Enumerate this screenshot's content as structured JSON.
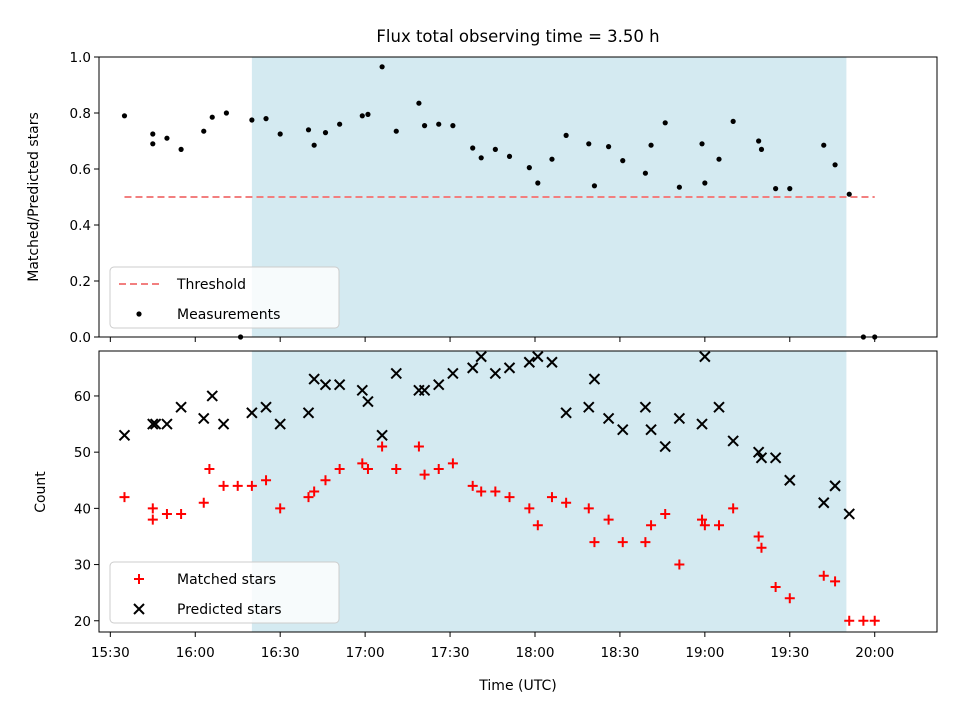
{
  "chart_data": [
    {
      "type": "scatter",
      "title": "Flux total observing time = 3.50 h",
      "xlabel": "",
      "ylabel": "Matched/Predicted stars",
      "xlim_minutes": [
        926,
        1222
      ],
      "ylim": [
        0,
        1.0
      ],
      "yticks": [
        "0.0",
        "0.2",
        "0.4",
        "0.6",
        "0.8",
        "1.0"
      ],
      "shaded_region_x": [
        "16:20",
        "19:50"
      ],
      "shaded_color": "#d4eaf1",
      "threshold": {
        "name": "Threshold",
        "y": 0.5,
        "x_start": "15:35",
        "x_end": "20:00",
        "color": "#f27f7f"
      },
      "legend": {
        "placement": "lower-left",
        "entries": [
          "Threshold",
          "Measurements"
        ]
      },
      "series": [
        {
          "name": "Measurements",
          "color": "#000000",
          "points": [
            [
              "15:35",
              0.79
            ],
            [
              "15:45",
              0.69
            ],
            [
              "15:45",
              0.725
            ],
            [
              "15:50",
              0.71
            ],
            [
              "15:55",
              0.67
            ],
            [
              "16:03",
              0.735
            ],
            [
              "16:06",
              0.785
            ],
            [
              "16:11",
              0.8
            ],
            [
              "16:16",
              0.0
            ],
            [
              "16:20",
              0.775
            ],
            [
              "16:25",
              0.78
            ],
            [
              "16:30",
              0.725
            ],
            [
              "16:40",
              0.74
            ],
            [
              "16:42",
              0.685
            ],
            [
              "16:46",
              0.73
            ],
            [
              "16:51",
              0.76
            ],
            [
              "16:59",
              0.79
            ],
            [
              "17:01",
              0.795
            ],
            [
              "17:06",
              0.965
            ],
            [
              "17:11",
              0.735
            ],
            [
              "17:19",
              0.835
            ],
            [
              "17:21",
              0.755
            ],
            [
              "17:26",
              0.76
            ],
            [
              "17:31",
              0.755
            ],
            [
              "17:38",
              0.675
            ],
            [
              "17:41",
              0.64
            ],
            [
              "17:46",
              0.67
            ],
            [
              "17:51",
              0.645
            ],
            [
              "17:58",
              0.605
            ],
            [
              "18:01",
              0.55
            ],
            [
              "18:06",
              0.635
            ],
            [
              "18:11",
              0.72
            ],
            [
              "18:19",
              0.69
            ],
            [
              "18:21",
              0.54
            ],
            [
              "18:26",
              0.68
            ],
            [
              "18:31",
              0.63
            ],
            [
              "18:39",
              0.585
            ],
            [
              "18:41",
              0.685
            ],
            [
              "18:46",
              0.765
            ],
            [
              "18:51",
              0.535
            ],
            [
              "18:59",
              0.69
            ],
            [
              "19:00",
              0.55
            ],
            [
              "19:05",
              0.635
            ],
            [
              "19:10",
              0.77
            ],
            [
              "19:19",
              0.7
            ],
            [
              "19:20",
              0.67
            ],
            [
              "19:25",
              0.53
            ],
            [
              "19:30",
              0.53
            ],
            [
              "19:42",
              0.685
            ],
            [
              "19:46",
              0.615
            ],
            [
              "19:51",
              0.51
            ],
            [
              "19:56",
              0.0
            ],
            [
              "20:00",
              0.0
            ]
          ]
        }
      ]
    },
    {
      "type": "scatter",
      "title": "",
      "xlabel": "Time (UTC)",
      "ylabel": "Count",
      "xlim_minutes": [
        926,
        1222
      ],
      "ylim": [
        18,
        68
      ],
      "yticks": [
        "20",
        "30",
        "40",
        "50",
        "60"
      ],
      "xticks": [
        "15:30",
        "16:00",
        "16:30",
        "17:00",
        "17:30",
        "18:00",
        "18:30",
        "19:00",
        "19:30",
        "20:00"
      ],
      "shaded_region_x": [
        "16:20",
        "19:50"
      ],
      "legend": {
        "placement": "lower-left",
        "entries": [
          "Matched stars",
          "Predicted stars"
        ]
      },
      "series": [
        {
          "name": "Matched stars",
          "marker": "plus",
          "color": "#ff0000",
          "points": [
            [
              "15:35",
              42
            ],
            [
              "15:45",
              38
            ],
            [
              "15:45",
              40
            ],
            [
              "15:50",
              39
            ],
            [
              "15:55",
              39
            ],
            [
              "16:03",
              41
            ],
            [
              "16:05",
              47
            ],
            [
              "16:10",
              44
            ],
            [
              "16:15",
              44
            ],
            [
              "16:20",
              44
            ],
            [
              "16:25",
              45
            ],
            [
              "16:30",
              40
            ],
            [
              "16:40",
              42
            ],
            [
              "16:42",
              43
            ],
            [
              "16:46",
              45
            ],
            [
              "16:51",
              47
            ],
            [
              "16:59",
              48
            ],
            [
              "17:01",
              47
            ],
            [
              "17:06",
              51
            ],
            [
              "17:11",
              47
            ],
            [
              "17:19",
              51
            ],
            [
              "17:21",
              46
            ],
            [
              "17:26",
              47
            ],
            [
              "17:31",
              48
            ],
            [
              "17:38",
              44
            ],
            [
              "17:41",
              43
            ],
            [
              "17:46",
              43
            ],
            [
              "17:51",
              42
            ],
            [
              "17:58",
              40
            ],
            [
              "18:01",
              37
            ],
            [
              "18:06",
              42
            ],
            [
              "18:11",
              41
            ],
            [
              "18:19",
              40
            ],
            [
              "18:21",
              34
            ],
            [
              "18:26",
              38
            ],
            [
              "18:31",
              34
            ],
            [
              "18:39",
              34
            ],
            [
              "18:41",
              37
            ],
            [
              "18:46",
              39
            ],
            [
              "18:51",
              30
            ],
            [
              "18:59",
              38
            ],
            [
              "19:00",
              37
            ],
            [
              "19:05",
              37
            ],
            [
              "19:10",
              40
            ],
            [
              "19:19",
              35
            ],
            [
              "19:20",
              33
            ],
            [
              "19:25",
              26
            ],
            [
              "19:30",
              24
            ],
            [
              "19:42",
              28
            ],
            [
              "19:46",
              27
            ],
            [
              "19:51",
              20
            ],
            [
              "19:56",
              20
            ],
            [
              "20:00",
              20
            ]
          ]
        },
        {
          "name": "Predicted stars",
          "marker": "x",
          "color": "#000000",
          "points": [
            [
              "15:35",
              53
            ],
            [
              "15:45",
              55
            ],
            [
              "15:46",
              55
            ],
            [
              "15:50",
              55
            ],
            [
              "15:55",
              58
            ],
            [
              "16:03",
              56
            ],
            [
              "16:06",
              60
            ],
            [
              "16:10",
              55
            ],
            [
              "16:20",
              57
            ],
            [
              "16:25",
              58
            ],
            [
              "16:30",
              55
            ],
            [
              "16:40",
              57
            ],
            [
              "16:42",
              63
            ],
            [
              "16:46",
              62
            ],
            [
              "16:51",
              62
            ],
            [
              "16:59",
              61
            ],
            [
              "17:01",
              59
            ],
            [
              "17:06",
              53
            ],
            [
              "17:11",
              64
            ],
            [
              "17:19",
              61
            ],
            [
              "17:21",
              61
            ],
            [
              "17:26",
              62
            ],
            [
              "17:31",
              64
            ],
            [
              "17:38",
              65
            ],
            [
              "17:41",
              67
            ],
            [
              "17:46",
              64
            ],
            [
              "17:51",
              65
            ],
            [
              "17:58",
              66
            ],
            [
              "18:01",
              67
            ],
            [
              "18:06",
              66
            ],
            [
              "18:11",
              57
            ],
            [
              "18:19",
              58
            ],
            [
              "18:21",
              63
            ],
            [
              "18:26",
              56
            ],
            [
              "18:31",
              54
            ],
            [
              "18:39",
              58
            ],
            [
              "18:41",
              54
            ],
            [
              "18:46",
              51
            ],
            [
              "18:51",
              56
            ],
            [
              "18:59",
              55
            ],
            [
              "19:00",
              67
            ],
            [
              "19:05",
              58
            ],
            [
              "19:10",
              52
            ],
            [
              "19:19",
              50
            ],
            [
              "19:20",
              49
            ],
            [
              "19:25",
              49
            ],
            [
              "19:30",
              45
            ],
            [
              "19:42",
              41
            ],
            [
              "19:46",
              44
            ],
            [
              "19:51",
              39
            ]
          ]
        }
      ]
    }
  ]
}
